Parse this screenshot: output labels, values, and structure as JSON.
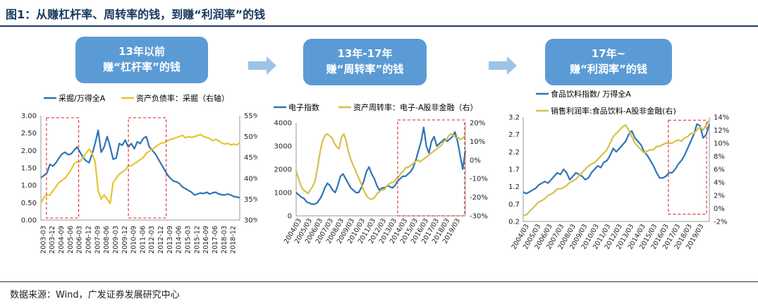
{
  "figure": {
    "title": "图1：从赚杠杆率、周转率的钱，到赚“利润率”的钱",
    "source": "数据来源：Wind，广发证券发展研究中心",
    "colors": {
      "blue": "#2e75b6",
      "yellow": "#e6c530",
      "gold": "#d6c04a",
      "box": "#5b9bd5",
      "arrow": "#9dc3e6",
      "highlight": "#e03a3a"
    }
  },
  "boxes": [
    {
      "line1": "13年以前",
      "line2": "赚“杠杆率”的钱"
    },
    {
      "line1": "13年-17年",
      "line2": "赚“周转率”的钱"
    },
    {
      "line1": "17年~",
      "line2": "赚“利润率”的钱"
    }
  ],
  "chart_data": [
    {
      "type": "line",
      "legend": [
        "采掘/万得全A",
        "资产负债率：采掘（右轴）"
      ],
      "x_labels": [
        "2003-03",
        "2003-12",
        "2004-09",
        "2005-06",
        "2006-03",
        "2006-12",
        "2007-09",
        "2008-06",
        "2009-03",
        "2009-12",
        "2010-09",
        "2011-06",
        "2012-03",
        "2012-12",
        "2013-09",
        "2014-06",
        "2015-03",
        "2015-12",
        "2016-09",
        "2017-06",
        "2018-03",
        "2018-12"
      ],
      "y_left": {
        "min": 0,
        "max": 3,
        "ticks": [
          "0.00",
          "0.50",
          "1.00",
          "1.50",
          "2.00",
          "2.50",
          "3.00"
        ]
      },
      "y_right": {
        "min": 30,
        "max": 55,
        "ticks": [
          "30%",
          "35%",
          "40%",
          "45%",
          "50%",
          "55%"
        ]
      },
      "series": [
        {
          "name": "采掘/万得全A",
          "axis": "left",
          "values": [
            1.22,
            1.28,
            1.35,
            1.6,
            1.55,
            1.65,
            1.78,
            1.9,
            1.95,
            1.88,
            1.9,
            2.0,
            2.1,
            1.95,
            1.8,
            1.7,
            1.65,
            1.9,
            2.2,
            2.58,
            1.95,
            2.1,
            2.4,
            2.1,
            1.75,
            1.78,
            2.2,
            2.15,
            2.3,
            2.1,
            2.2,
            2.05,
            2.25,
            2.2,
            2.35,
            2.4,
            2.1,
            2.0,
            1.9,
            1.75,
            1.6,
            1.45,
            1.3,
            1.2,
            1.12,
            1.1,
            1.05,
            0.95,
            0.9,
            0.85,
            0.8,
            0.72,
            0.75,
            0.78,
            0.76,
            0.8,
            0.75,
            0.78,
            0.8,
            0.75,
            0.73,
            0.72,
            0.75,
            0.72,
            0.68,
            0.66,
            0.64
          ]
        },
        {
          "name": "资产负债率：采掘（右轴）",
          "axis": "right",
          "values": [
            34,
            35.5,
            36,
            36,
            37,
            38,
            39,
            39.5,
            40,
            41,
            42,
            43.5,
            44,
            44,
            45,
            46,
            47,
            46,
            44,
            37,
            35,
            36,
            35,
            34,
            39,
            40,
            41,
            41.5,
            42,
            43,
            43,
            43.5,
            44,
            44.5,
            45,
            46,
            46.5,
            47,
            47.5,
            48,
            48.5,
            48.5,
            49,
            49.3,
            49.5,
            49.8,
            50,
            50.3,
            49.7,
            50,
            49.8,
            50,
            50.2,
            50.5,
            50,
            49.8,
            49.5,
            49,
            49.3,
            49,
            48.5,
            48.2,
            48.4,
            48,
            48.2,
            48,
            48.5
          ]
        }
      ],
      "highlight": "2003-2006, 2009-2011"
    },
    {
      "type": "line",
      "legend": [
        "电子指数",
        "资产周转率：电子-A股非金融（右）"
      ],
      "x_labels": [
        "2004/03",
        "2005/03",
        "2006/03",
        "2007/03",
        "2008/03",
        "2009/03",
        "2010/03",
        "2011/03",
        "2012/03",
        "2013/03",
        "2014/03",
        "2015/03",
        "2016/03",
        "2017/03",
        "2018/03",
        "2019/03"
      ],
      "y_left": {
        "min": 0,
        "max": 4000,
        "ticks": [
          "0",
          "1000",
          "2000",
          "3000",
          "4000"
        ]
      },
      "y_right": {
        "min": -30,
        "max": 20,
        "ticks": [
          "-30%",
          "-20%",
          "-10%",
          "0%",
          "10%",
          "20%"
        ]
      },
      "series": [
        {
          "name": "电子指数",
          "axis": "left",
          "values": [
            1000,
            900,
            800,
            750,
            600,
            550,
            500,
            500,
            550,
            700,
            900,
            1200,
            1400,
            1300,
            1100,
            1000,
            1300,
            1700,
            1800,
            1600,
            1400,
            1200,
            1100,
            1000,
            1000,
            1200,
            1500,
            1900,
            2100,
            1800,
            1600,
            1300,
            1100,
            1200,
            1200,
            1300,
            1250,
            1200,
            1300,
            1500,
            1600,
            1700,
            1700,
            1800,
            1900,
            2100,
            2400,
            2800,
            3200,
            3800,
            3000,
            2700,
            3200,
            3400,
            3000,
            3100,
            3200,
            3300,
            3200,
            3300,
            3400,
            3600,
            3200,
            2600,
            2000,
            2800
          ]
        },
        {
          "name": "资产周转率：电子-A股非金融（右）",
          "axis": "right",
          "values": [
            -6,
            -10,
            -14,
            -16,
            -17,
            -18,
            -16,
            -14,
            -11,
            -4,
            4,
            10,
            13,
            14,
            13,
            12,
            9,
            7,
            6,
            12,
            14,
            10,
            4,
            0,
            -3,
            -6,
            -9,
            -12,
            -15,
            -18,
            -20,
            -21,
            -21,
            -20,
            -18,
            -17,
            -16,
            -16,
            -14,
            -13,
            -12,
            -12,
            -10,
            -9,
            -7,
            -6,
            -4,
            -4,
            -3,
            -2,
            -1,
            0,
            -1,
            0,
            1,
            2,
            3,
            4,
            5,
            6,
            7,
            8,
            10,
            11,
            13,
            14,
            13,
            12,
            12,
            11,
            12,
            13
          ]
        },
        {
          "name": "",
          "axis": "left",
          "values": []
        }
      ],
      "highlight": "2013-2018"
    },
    {
      "type": "line",
      "legend": [
        "食品饮料指数/ 万得全A",
        "销售利润率:食品饮料-A股非金融(右)"
      ],
      "x_labels": [
        "2004/03",
        "2005/03",
        "2006/03",
        "2007/03",
        "2008/03",
        "2009/03",
        "2010/03",
        "2011/03",
        "2012/03",
        "2013/03",
        "2014/03",
        "2015/03",
        "2016/03",
        "2017/03",
        "2018/03",
        "2019/03"
      ],
      "y_left": {
        "min": 0.2,
        "max": 3.2,
        "ticks": [
          "0.2",
          "0.7",
          "1.2",
          "1.7",
          "2.2",
          "2.7",
          "3.2"
        ]
      },
      "y_right": {
        "min": -2,
        "max": 14,
        "ticks": [
          "-2%",
          "0%",
          "2%",
          "4%",
          "6%",
          "8%",
          "10%",
          "12%",
          "14%"
        ]
      },
      "series": [
        {
          "name": "食品饮料指数/ 万得全A",
          "axis": "left",
          "values": [
            1.05,
            1.0,
            1.05,
            1.1,
            1.15,
            1.25,
            1.3,
            1.35,
            1.3,
            1.4,
            1.5,
            1.6,
            1.55,
            1.7,
            1.6,
            1.4,
            1.5,
            1.6,
            1.55,
            1.5,
            1.4,
            1.45,
            1.6,
            1.7,
            1.8,
            1.75,
            1.9,
            1.95,
            2.1,
            2.3,
            2.2,
            2.3,
            2.4,
            2.5,
            2.7,
            2.8,
            2.6,
            2.5,
            2.4,
            2.2,
            2.1,
            1.95,
            1.8,
            1.6,
            1.45,
            1.45,
            1.5,
            1.6,
            1.6,
            1.7,
            1.85,
            1.95,
            2.1,
            2.3,
            2.5,
            2.7,
            3.0,
            2.95,
            2.6,
            2.7,
            3.0
          ]
        },
        {
          "name": "销售利润率:食品饮料-A股非金融(右)",
          "axis": "right",
          "values": [
            -1,
            -1,
            -0.5,
            0,
            0.5,
            1,
            1.2,
            1.5,
            2,
            2.2,
            2.5,
            3,
            3,
            3.2,
            3.5,
            4,
            4.2,
            4.5,
            5,
            5.5,
            6,
            6.5,
            6.8,
            7,
            7.5,
            8,
            8.5,
            9,
            10,
            11,
            11.5,
            12,
            12.5,
            12.8,
            12,
            11,
            10,
            9.5,
            9,
            8.5,
            8.8,
            9,
            9,
            9.5,
            9.5,
            9.8,
            10,
            10,
            10,
            10.3,
            10.5,
            10.3,
            10.8,
            11,
            11.5,
            11.5,
            12,
            12.5,
            12,
            12.8,
            13.5
          ]
        }
      ],
      "highlight": "2015-2019"
    }
  ]
}
